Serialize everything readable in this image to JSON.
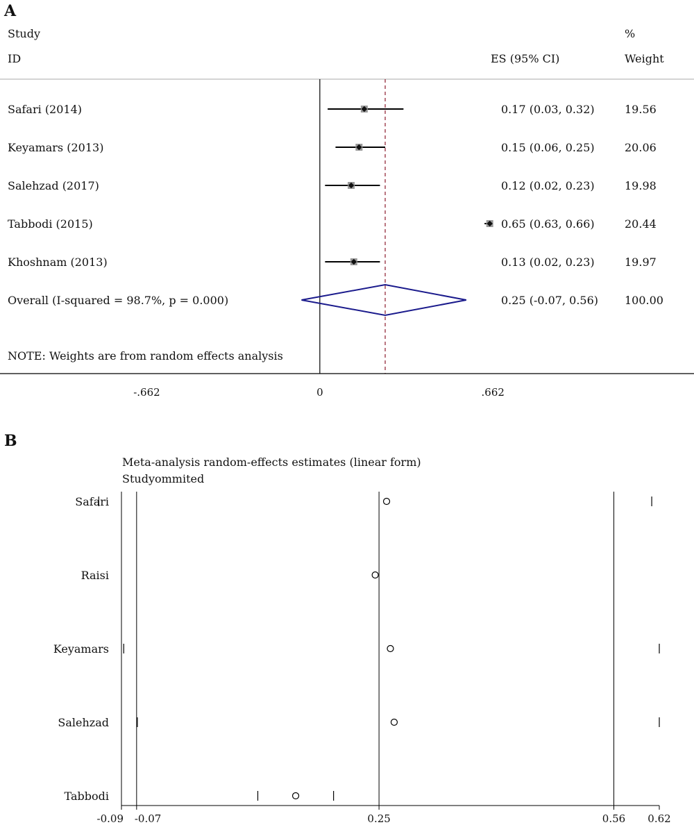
{
  "chart_data": [
    {
      "type": "forest",
      "panel_label": "A",
      "columns": {
        "study_line1": "Study",
        "study_line2": "ID",
        "es": "ES (95% CI)",
        "weight_line1": "%",
        "weight_line2": "Weight"
      },
      "studies": [
        {
          "label": "Safari (2014)",
          "es": 0.17,
          "lo": 0.03,
          "hi": 0.32,
          "es_text": "0.17 (0.03, 0.32)",
          "weight": "19.56"
        },
        {
          "label": "Keyamars (2013)",
          "es": 0.15,
          "lo": 0.06,
          "hi": 0.25,
          "es_text": "0.15 (0.06, 0.25)",
          "weight": "20.06"
        },
        {
          "label": "Salehzad (2017)",
          "es": 0.12,
          "lo": 0.02,
          "hi": 0.23,
          "es_text": "0.12 (0.02, 0.23)",
          "weight": "19.98"
        },
        {
          "label": "Tabbodi (2015)",
          "es": 0.65,
          "lo": 0.63,
          "hi": 0.66,
          "es_text": "0.65 (0.63, 0.66)",
          "weight": "20.44"
        },
        {
          "label": "Khoshnam (2013)",
          "es": 0.13,
          "lo": 0.02,
          "hi": 0.23,
          "es_text": "0.13 (0.02, 0.23)",
          "weight": "19.97"
        }
      ],
      "overall": {
        "label": "Overall  (I-squared = 98.7%, p = 0.000)",
        "es": 0.25,
        "lo": -0.07,
        "hi": 0.56,
        "es_text": "0.25 (-0.07, 0.56)",
        "weight": "100.00"
      },
      "note": "NOTE: Weights are from random effects analysis",
      "xlim": [
        -1.2233,
        1.4312
      ],
      "x_ticks": [
        {
          "v": -0.662,
          "label": "-.662"
        },
        {
          "v": 0,
          "label": "0"
        },
        {
          "v": 0.662,
          "label": ".662"
        }
      ],
      "colors": {
        "ci": "#000000",
        "diamond": "#1a1a8c",
        "overall_line": "#8b1a2b",
        "marker": "#999999"
      }
    },
    {
      "type": "influence",
      "panel_label": "B",
      "title": "Meta-analysis random-effects estimates (linear form)",
      "subtitle": "Studyommited",
      "studies": [
        {
          "label": "Safari",
          "es": 0.26,
          "lo": -0.12,
          "hi": 0.61
        },
        {
          "label": "Raisi",
          "es": 0.245,
          "lo": null,
          "hi": null
        },
        {
          "label": "Keyamars",
          "es": 0.265,
          "lo": -0.087,
          "hi": 0.62
        },
        {
          "label": "Salehzad",
          "es": 0.27,
          "lo": -0.069,
          "hi": 0.62
        },
        {
          "label": "Tabbodi",
          "es": 0.14,
          "lo": 0.09,
          "hi": 0.19
        }
      ],
      "vlines": [
        -0.07,
        0.25,
        0.56
      ],
      "xlim": [
        -0.09,
        0.62
      ],
      "x_ticks": [
        {
          "v": -0.09,
          "label": "-0.09"
        },
        {
          "v": -0.07,
          "label": "-0.07"
        },
        {
          "v": 0.25,
          "label": "0.25"
        },
        {
          "v": 0.56,
          "label": "0.56"
        },
        {
          "v": 0.62,
          "label": "0.62"
        }
      ]
    }
  ]
}
